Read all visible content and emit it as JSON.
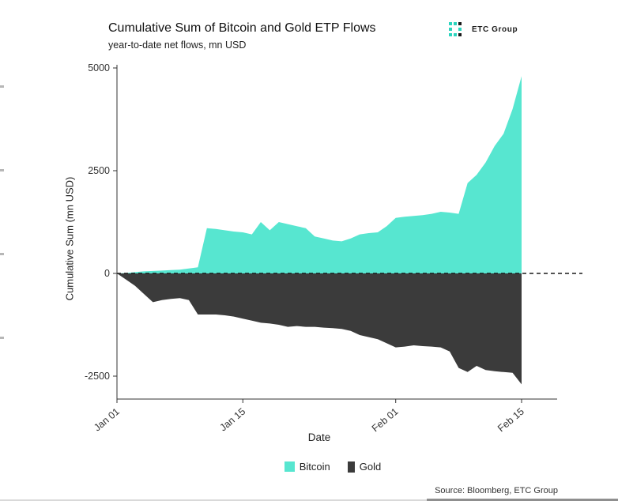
{
  "header": {
    "title": "Cumulative Sum of Bitcoin and Gold ETP Flows",
    "subtitle": "year-to-date net flows, mn USD"
  },
  "logo": {
    "text": "ETC Group",
    "accent_color": "#2bd4be"
  },
  "axes": {
    "x_label": "Date",
    "y_label": "Cumulative Sum (mn USD)"
  },
  "legend": {
    "items": [
      {
        "label": "Bitcoin",
        "color": "#57e6d0"
      },
      {
        "label": "Gold",
        "color": "#3b3b3b"
      }
    ]
  },
  "footer": {
    "source": "Source: Bloomberg, ETC Group"
  },
  "chart_data": {
    "type": "area",
    "title": "Cumulative Sum of Bitcoin and Gold ETP Flows",
    "subtitle": "year-to-date net flows, mn USD",
    "xlabel": "Date",
    "ylabel": "Cumulative Sum (mn USD)",
    "ylim": [
      -2900,
      5200
    ],
    "baseline": 0,
    "baseline_style": "dashed",
    "grid": false,
    "legend_position": "bottom",
    "x": [
      "Jan 01",
      "Jan 02",
      "Jan 03",
      "Jan 04",
      "Jan 05",
      "Jan 06",
      "Jan 07",
      "Jan 08",
      "Jan 09",
      "Jan 10",
      "Jan 11",
      "Jan 12",
      "Jan 13",
      "Jan 14",
      "Jan 15",
      "Jan 16",
      "Jan 17",
      "Jan 18",
      "Jan 19",
      "Jan 20",
      "Jan 21",
      "Jan 22",
      "Jan 23",
      "Jan 24",
      "Jan 25",
      "Jan 26",
      "Jan 27",
      "Jan 28",
      "Jan 29",
      "Jan 30",
      "Jan 31",
      "Feb 01",
      "Feb 02",
      "Feb 03",
      "Feb 04",
      "Feb 05",
      "Feb 06",
      "Feb 07",
      "Feb 08",
      "Feb 09",
      "Feb 10",
      "Feb 11",
      "Feb 12",
      "Feb 13",
      "Feb 14",
      "Feb 15"
    ],
    "x_ticks": [
      {
        "index": 0,
        "label": "Jan 01"
      },
      {
        "index": 14,
        "label": "Jan 15"
      },
      {
        "index": 31,
        "label": "Feb 01"
      },
      {
        "index": 45,
        "label": "Feb 15"
      }
    ],
    "y_ticks": [
      {
        "value": 5000,
        "label": "5000"
      },
      {
        "value": 2500,
        "label": "2500"
      },
      {
        "value": 0,
        "label": "0"
      },
      {
        "value": -2500,
        "label": "-2500"
      }
    ],
    "series": [
      {
        "name": "Bitcoin",
        "color": "#57e6d0",
        "values": [
          0,
          10,
          30,
          50,
          60,
          70,
          80,
          90,
          120,
          150,
          1100,
          1080,
          1050,
          1020,
          1000,
          950,
          1250,
          1050,
          1250,
          1200,
          1150,
          1100,
          900,
          850,
          800,
          780,
          850,
          950,
          980,
          1000,
          1150,
          1350,
          1380,
          1400,
          1420,
          1450,
          1500,
          1480,
          1450,
          2200,
          2400,
          2700,
          3100,
          3400,
          4000,
          4800
        ]
      },
      {
        "name": "Gold",
        "color": "#3b3b3b",
        "values": [
          0,
          -150,
          -300,
          -500,
          -700,
          -650,
          -620,
          -600,
          -650,
          -1000,
          -1000,
          -1000,
          -1020,
          -1050,
          -1100,
          -1150,
          -1200,
          -1220,
          -1250,
          -1300,
          -1280,
          -1300,
          -1300,
          -1320,
          -1330,
          -1350,
          -1400,
          -1500,
          -1550,
          -1600,
          -1700,
          -1800,
          -1780,
          -1750,
          -1770,
          -1780,
          -1800,
          -1900,
          -2300,
          -2400,
          -2250,
          -2350,
          -2380,
          -2400,
          -2420,
          -2700
        ]
      }
    ]
  }
}
